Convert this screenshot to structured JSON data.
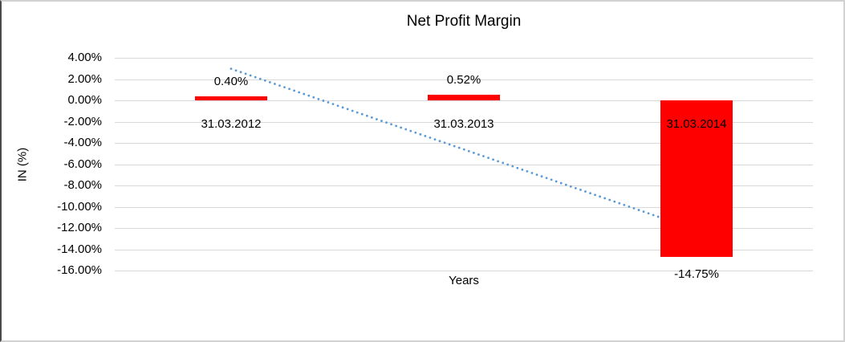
{
  "chart_data": {
    "type": "bar",
    "title": "Net Profit Margin",
    "xlabel": "Years",
    "ylabel": "IN (%)",
    "categories": [
      "31.03.2012",
      "31.03.2013",
      "31.03.2014"
    ],
    "values": [
      0.4,
      0.52,
      -14.75
    ],
    "value_labels": [
      "0.40%",
      "0.52%",
      "-14.75%"
    ],
    "ylim": [
      -16,
      4
    ],
    "yticks": [
      4,
      2,
      0,
      -2,
      -4,
      -6,
      -8,
      -10,
      -12,
      -14,
      -16
    ],
    "ytick_labels": [
      "4.00%",
      "2.00%",
      "0.00%",
      "-2.00%",
      "-4.00%",
      "-6.00%",
      "-8.00%",
      "-10.00%",
      "-12.00%",
      "-14.00%",
      "-16.00%"
    ],
    "grid": true,
    "legend": false,
    "trendline": {
      "type": "linear",
      "style": "dotted",
      "start_value": 2.97,
      "end_value": -12.19
    },
    "colors": {
      "bar": "#FF0000",
      "trendline": "#5B9BD5",
      "gridline": "#D9D9D9",
      "text": "#000000"
    }
  }
}
